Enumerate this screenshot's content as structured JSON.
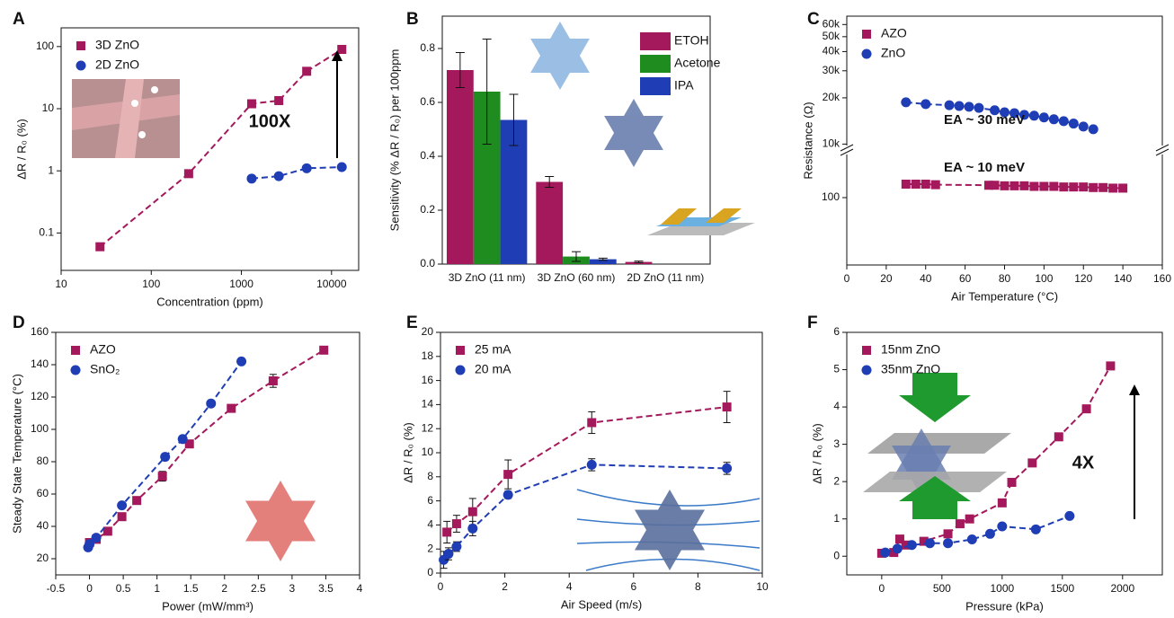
{
  "chart_data": [
    {
      "type": "scatter",
      "panel": "A",
      "x_label": "Concentration (ppm)",
      "y_label": "ΔR / R₀ (%)",
      "xscale": "log",
      "yscale": "log",
      "xlim": [
        10,
        20000
      ],
      "ylim": [
        0.025,
        200
      ],
      "xticks": [
        10,
        100,
        1000,
        10000
      ],
      "yticks": [
        0.1,
        1,
        10,
        100
      ],
      "legend": "upper left",
      "annotations": [
        "100X"
      ],
      "series": [
        {
          "name": "3D ZnO",
          "color": "#a3195b",
          "marker": "square",
          "x": [
            27,
            260,
            1300,
            2600,
            5300,
            13000
          ],
          "values": [
            0.06,
            0.9,
            12,
            13.5,
            40,
            90
          ]
        },
        {
          "name": "2D ZnO",
          "color": "#1f3db4",
          "marker": "circle",
          "x": [
            1300,
            2600,
            5300,
            13000
          ],
          "values": [
            0.75,
            0.82,
            1.1,
            1.15
          ]
        }
      ]
    },
    {
      "type": "bar",
      "panel": "B",
      "y_label": "Sensitivity (% ΔR / R₀) per 100ppm",
      "categories": [
        "3D ZnO (11 nm)",
        "3D ZnO (60 nm)",
        "2D ZnO (11 nm)"
      ],
      "ylim": [
        0,
        0.92
      ],
      "yticks": [
        {
          "value": 0,
          "label": "0.0"
        },
        0.2,
        0.4,
        0.6,
        0.8
      ],
      "legend": "upper right",
      "annotations": [],
      "series": [
        {
          "name": "ETOH",
          "color": "#a3195b",
          "values": [
            0.72,
            0.305,
            0.008
          ],
          "errors": [
            0.065,
            0.02,
            0.003
          ]
        },
        {
          "name": "Acetone",
          "color": "#1e8c1e",
          "values": [
            0.64,
            0.028,
            null
          ],
          "errors": [
            0.195,
            0.018,
            null
          ]
        },
        {
          "name": "IPA",
          "color": "#1f3db4",
          "values": [
            0.535,
            0.018,
            null
          ],
          "errors": [
            0.095,
            0.004,
            null
          ]
        }
      ]
    },
    {
      "type": "scatter",
      "panel": "C",
      "x_label": "Air Temperature (°C)",
      "y_label": "Resistance (Ω)",
      "yscale": "log",
      "xlim": [
        0,
        160
      ],
      "xticks": [
        0,
        20,
        40,
        60,
        80,
        100,
        120,
        140,
        160
      ],
      "y_segments": [
        {
          "ylim": [
            9400,
            68000
          ],
          "yticks": [
            {
              "value": 10000,
              "label": "10k"
            },
            {
              "value": 20000,
              "label": "20k"
            },
            {
              "value": 30000,
              "label": "30k"
            },
            {
              "value": 40000,
              "label": "40k"
            },
            {
              "value": 50000,
              "label": "50k"
            },
            {
              "value": 60000,
              "label": "60k"
            }
          ]
        },
        {
          "ylim": [
            37,
            194
          ],
          "yticks": [
            100
          ]
        }
      ],
      "legend": "upper left",
      "annotations": [
        "EA ~ 30 meV",
        "EA ~ 10 meV"
      ],
      "series": [
        {
          "name": "AZO",
          "color": "#a3195b",
          "marker": "square",
          "x": [
            30,
            35,
            40,
            45,
            72,
            75,
            80,
            85,
            90,
            95,
            100,
            105,
            110,
            115,
            120,
            125,
            130,
            135,
            140
          ],
          "values": [
            122,
            122,
            122,
            121,
            120,
            120,
            119,
            119,
            119,
            118,
            118,
            118,
            117,
            117,
            117,
            116,
            116,
            115,
            115
          ]
        },
        {
          "name": "ZnO",
          "color": "#1f3db4",
          "marker": "circle",
          "x": [
            30,
            40,
            52,
            57,
            62,
            67,
            75,
            80,
            85,
            90,
            95,
            100,
            105,
            110,
            115,
            120,
            125
          ],
          "values": [
            18700,
            18200,
            17900,
            17700,
            17500,
            17200,
            16600,
            16100,
            15900,
            15500,
            15300,
            14900,
            14500,
            14100,
            13600,
            13000,
            12500
          ]
        }
      ]
    },
    {
      "type": "scatter",
      "panel": "D",
      "x_label": "Power (mW/mm³)",
      "y_label": "Steady State Temperature (°C)",
      "xlim": [
        -0.5,
        4
      ],
      "ylim": [
        10,
        160
      ],
      "xticks": [
        -0.5,
        0,
        0.5,
        1,
        1.5,
        2,
        2.5,
        3,
        3.5,
        4
      ],
      "yticks": [
        20,
        40,
        60,
        80,
        100,
        120,
        140,
        160
      ],
      "legend": "upper left",
      "annotations": [],
      "series": [
        {
          "name": "AZO",
          "color": "#a3195b",
          "marker": "square",
          "x": [
            0,
            0.1,
            0.27,
            0.48,
            0.7,
            1.08,
            1.48,
            2.1,
            2.72,
            3.47
          ],
          "values": [
            30,
            32,
            37,
            46,
            56,
            71,
            91,
            113,
            130,
            149
          ],
          "errors": [
            1,
            1,
            1,
            1,
            1,
            3,
            1,
            2,
            4,
            1
          ]
        },
        {
          "name": "SnO₂",
          "color": "#1f3db4",
          "marker": "circle",
          "x": [
            -0.02,
            0,
            0.1,
            0.48,
            1.12,
            1.38,
            1.8,
            2.25
          ],
          "values": [
            27,
            29,
            33,
            53,
            83,
            94,
            116,
            142
          ],
          "errors": [
            2,
            1,
            1,
            1,
            2,
            1,
            1,
            1
          ]
        }
      ]
    },
    {
      "type": "scatter",
      "panel": "E",
      "x_label": "Air Speed (m/s)",
      "y_label": "ΔR / R₀ (%)",
      "xlim": [
        0,
        10
      ],
      "ylim": [
        0,
        20
      ],
      "xticks": [
        0,
        2,
        4,
        6,
        8,
        10
      ],
      "yticks": [
        0,
        2,
        4,
        6,
        8,
        10,
        12,
        14,
        16,
        18,
        20
      ],
      "legend": "upper left",
      "annotations": [],
      "series": [
        {
          "name": "25 mA",
          "color": "#a3195b",
          "marker": "square",
          "x": [
            0.2,
            0.5,
            1,
            2.1,
            4.7,
            8.9
          ],
          "values": [
            3.4,
            4.1,
            5.1,
            8.2,
            12.5,
            13.8
          ],
          "errors": [
            0.9,
            0.7,
            1.1,
            1.2,
            0.9,
            1.3
          ]
        },
        {
          "name": "20 mA",
          "color": "#1f3db4",
          "marker": "circle",
          "x": [
            0.1,
            0.25,
            0.5,
            1,
            2.1,
            4.7,
            8.9
          ],
          "values": [
            1.1,
            1.6,
            2.2,
            3.7,
            6.5,
            9,
            8.7
          ],
          "errors": [
            0.7,
            0.5,
            0.4,
            0.6,
            0.3,
            0.5,
            0.5
          ]
        }
      ]
    },
    {
      "type": "scatter",
      "panel": "F",
      "x_label": "Pressure (kPa)",
      "y_label": "ΔR / R₀ (%)",
      "xlim": [
        -290,
        2330
      ],
      "ylim": [
        -0.5,
        6
      ],
      "xticks": [
        0,
        500,
        1000,
        1500,
        2000
      ],
      "yticks": [
        0,
        1,
        2,
        3,
        4,
        5,
        6
      ],
      "legend": "upper left",
      "annotations": [
        "4X"
      ],
      "series": [
        {
          "name": "15nm ZnO",
          "color": "#a3195b",
          "marker": "square",
          "x": [
            0,
            100,
            150,
            200,
            350,
            550,
            650,
            730,
            1000,
            1080,
            1250,
            1470,
            1700,
            1900
          ],
          "values": [
            0.08,
            0.1,
            0.46,
            0.3,
            0.4,
            0.6,
            0.87,
            1,
            1.43,
            1.98,
            2.5,
            3.2,
            3.95,
            5.1
          ]
        },
        {
          "name": "35nm ZnO",
          "color": "#1f3db4",
          "marker": "circle",
          "x": [
            30,
            130,
            250,
            400,
            550,
            750,
            900,
            1000,
            1280,
            1560
          ],
          "values": [
            0.1,
            0.2,
            0.3,
            0.35,
            0.35,
            0.45,
            0.6,
            0.8,
            0.72,
            1.08
          ]
        }
      ]
    }
  ]
}
